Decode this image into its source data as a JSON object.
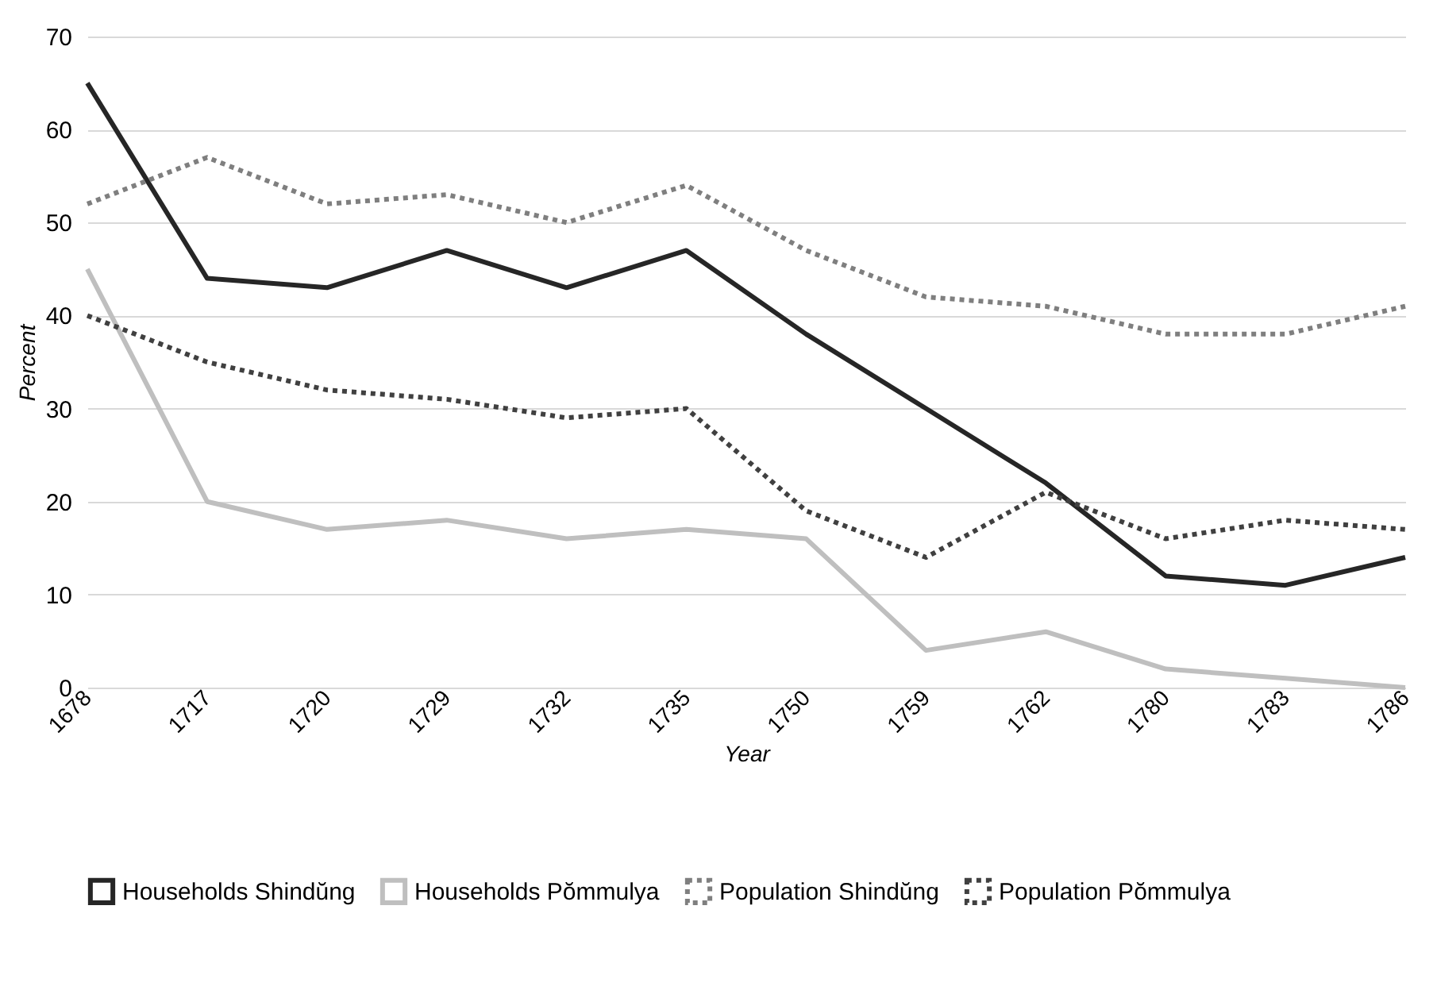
{
  "chart_data": {
    "type": "line",
    "xlabel": "Year",
    "ylabel": "Percent",
    "categories": [
      "1678",
      "1717",
      "1720",
      "1729",
      "1732",
      "1735",
      "1750",
      "1759",
      "1762",
      "1780",
      "1783",
      "1786"
    ],
    "series": [
      {
        "name": "Households Shindŭng",
        "color": "#262626",
        "line_style": "solid",
        "values": [
          65,
          44,
          43,
          47,
          43,
          47,
          38,
          30,
          22,
          12,
          11,
          14
        ]
      },
      {
        "name": "Households Pŏmmulya",
        "color": "#bfbfbf",
        "line_style": "solid",
        "values": [
          45,
          20,
          17,
          18,
          16,
          17,
          16,
          4,
          6,
          2,
          1,
          0
        ]
      },
      {
        "name": "Population Shindŭng",
        "color": "#7f7f7f",
        "line_style": "dotted",
        "values": [
          52,
          57,
          52,
          53,
          50,
          54,
          47,
          42,
          41,
          38,
          38,
          41
        ]
      },
      {
        "name": "Population Pŏmmulya",
        "color": "#404040",
        "line_style": "dotted",
        "values": [
          40,
          35,
          32,
          31,
          29,
          30,
          19,
          14,
          21,
          16,
          18,
          17
        ]
      }
    ],
    "ylim": [
      0,
      70
    ],
    "yticks": [
      0,
      10,
      20,
      30,
      40,
      50,
      60,
      70
    ],
    "grid": "y",
    "legend": "bottom",
    "marker": "none"
  }
}
